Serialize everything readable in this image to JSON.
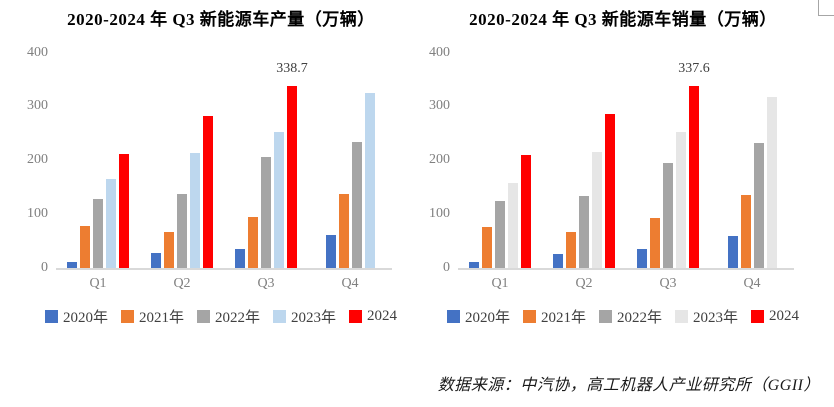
{
  "source_note": "数据来源：中汽协，高工机器人产业研究所（GGII）",
  "chart_data": [
    {
      "type": "bar",
      "title": "2020-2024 年 Q3 新能源车产量（万辆）",
      "categories": [
        "Q1",
        "Q2",
        "Q3",
        "Q4"
      ],
      "series": [
        {
          "name": "2020年",
          "color": "#4472C4",
          "values": [
            10,
            27,
            35,
            60
          ]
        },
        {
          "name": "2021年",
          "color": "#ED7D31",
          "values": [
            78,
            67,
            95,
            137
          ]
        },
        {
          "name": "2022年",
          "color": "#A5A5A5",
          "values": [
            128,
            137,
            206,
            234
          ]
        },
        {
          "name": "2023年",
          "color": "#BDD7EE",
          "values": [
            165,
            213,
            252,
            325
          ]
        },
        {
          "name": "2024",
          "color": "#FF0000",
          "values": [
            212,
            282,
            338.7,
            null
          ]
        }
      ],
      "ylim": [
        0,
        400
      ],
      "yticks": [
        0,
        100,
        200,
        300,
        400
      ],
      "annotations": [
        {
          "series": "2024",
          "category": "Q3",
          "text": "338.7"
        }
      ],
      "grid": false,
      "legend_position": "bottom"
    },
    {
      "type": "bar",
      "title": "2020-2024 年 Q3 新能源车销量（万辆）",
      "categories": [
        "Q1",
        "Q2",
        "Q3",
        "Q4"
      ],
      "series": [
        {
          "name": "2020年",
          "color": "#4472C4",
          "values": [
            11,
            26,
            35,
            58
          ]
        },
        {
          "name": "2021年",
          "color": "#ED7D31",
          "values": [
            76,
            67,
            93,
            135
          ]
        },
        {
          "name": "2022年",
          "color": "#A5A5A5",
          "values": [
            124,
            134,
            195,
            232
          ]
        },
        {
          "name": "2023年",
          "color": "#E6E6E6",
          "values": [
            158,
            215,
            252,
            317
          ]
        },
        {
          "name": "2024",
          "color": "#FF0000",
          "values": [
            209,
            286,
            337.6,
            null
          ]
        }
      ],
      "ylim": [
        0,
        400
      ],
      "yticks": [
        0,
        100,
        200,
        300,
        400
      ],
      "annotations": [
        {
          "series": "2024",
          "category": "Q3",
          "text": "337.6"
        }
      ],
      "grid": false,
      "legend_position": "bottom"
    }
  ]
}
